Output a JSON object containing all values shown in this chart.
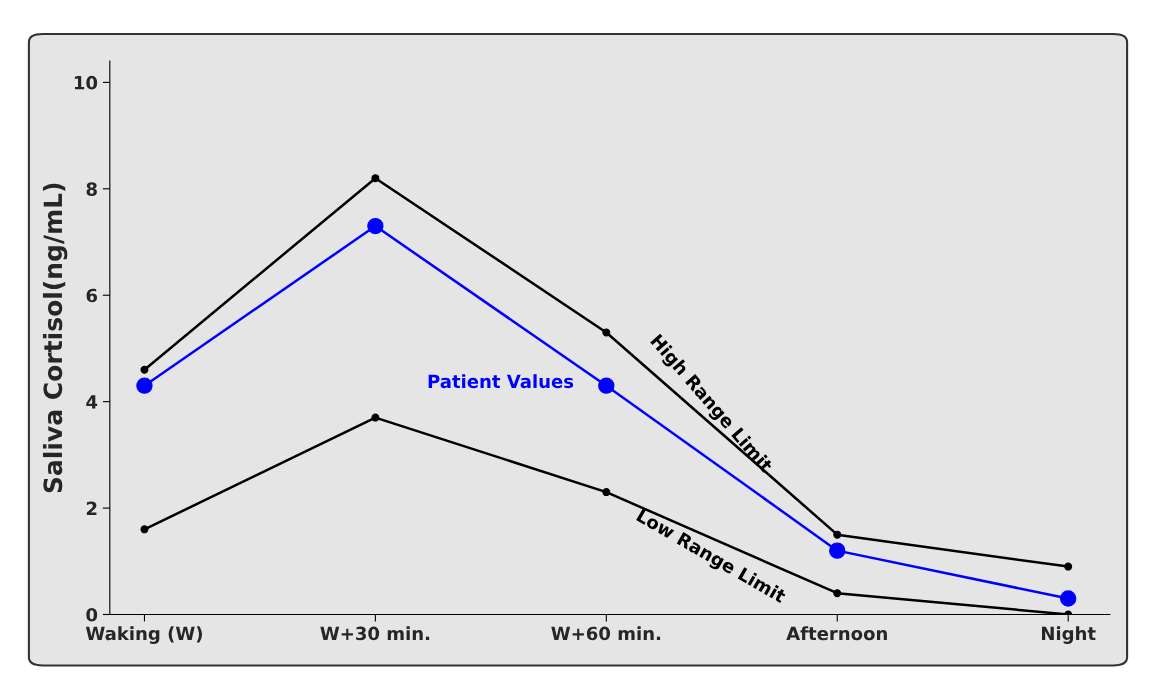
{
  "chart_data": {
    "type": "line",
    "ylabel": "Saliva Cortisol(ng/mL)",
    "categories": [
      "Waking (W)",
      "W+30 min.",
      "W+60 min.",
      "Afternoon",
      "Night"
    ],
    "series": [
      {
        "name": "High Range Limit",
        "color": "#000000",
        "values": [
          4.6,
          8.2,
          5.3,
          1.5,
          0.9
        ]
      },
      {
        "name": "Low Range Limit",
        "color": "#000000",
        "values": [
          1.6,
          3.7,
          2.3,
          0.4,
          0.0
        ]
      },
      {
        "name": "Patient Values",
        "color": "#0000ff",
        "values": [
          4.3,
          7.3,
          4.3,
          1.2,
          0.3
        ]
      }
    ],
    "ylim": [
      0,
      10.4
    ],
    "yticks": [
      0,
      2,
      4,
      6,
      8,
      10
    ],
    "marker": "circle",
    "line_style": "solid",
    "grid": false,
    "legend": false
  }
}
